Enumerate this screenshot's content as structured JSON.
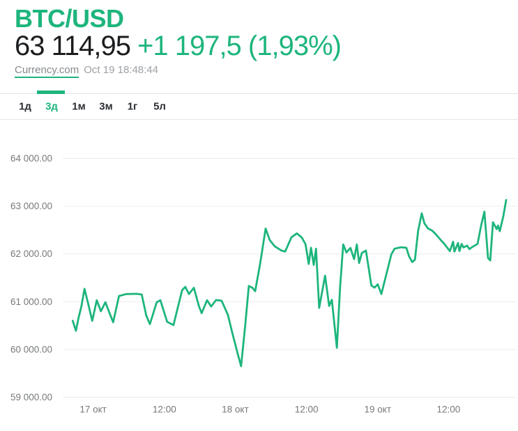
{
  "header": {
    "symbol": "BTC/USD",
    "price": "63 114,95",
    "change": "+1 197,5 (1,93%)",
    "source_link": "Currency.com",
    "timestamp": "Oct 19 18:48:44"
  },
  "colors": {
    "accent": "#1db57c",
    "price_text": "#1b1d1f",
    "axis_text": "#75787b",
    "gridline": "#ececec"
  },
  "tabs": {
    "items": [
      {
        "label": "1д",
        "active": false
      },
      {
        "label": "3д",
        "active": true
      },
      {
        "label": "1м",
        "active": false
      },
      {
        "label": "3м",
        "active": false
      },
      {
        "label": "1г",
        "active": false
      },
      {
        "label": "5л",
        "active": false
      }
    ]
  },
  "chart_data": {
    "type": "line",
    "title": "BTC/USD price, 3-day range",
    "xlabel": "",
    "ylabel": "",
    "legend": "none",
    "grid": "horizontal",
    "line_color": "#1db57c",
    "ylim": [
      58800,
      64600
    ],
    "y_ticks": [
      {
        "value": 64000,
        "label": "64 000.00"
      },
      {
        "value": 63000,
        "label": "63 000.00"
      },
      {
        "value": 62000,
        "label": "62 000.00"
      },
      {
        "value": 61000,
        "label": "61 000.00"
      },
      {
        "value": 60000,
        "label": "60 000.00"
      },
      {
        "value": 59000,
        "label": "59 000.00"
      }
    ],
    "x_ticks": [
      {
        "label": "17 окт",
        "pos": 6.7
      },
      {
        "label": "12:00",
        "pos": 22.4
      },
      {
        "label": "18 окт",
        "pos": 38.0
      },
      {
        "label": "12:00",
        "pos": 53.7
      },
      {
        "label": "19 окт",
        "pos": 69.4
      },
      {
        "label": "12:00",
        "pos": 85.0
      }
    ],
    "points": [
      [
        2.2,
        60600
      ],
      [
        2.9,
        60390
      ],
      [
        3.5,
        60670
      ],
      [
        4.1,
        60900
      ],
      [
        4.8,
        61270
      ],
      [
        5.7,
        60920
      ],
      [
        6.5,
        60600
      ],
      [
        7.5,
        61030
      ],
      [
        8.4,
        60800
      ],
      [
        9.4,
        60990
      ],
      [
        10.4,
        60740
      ],
      [
        11.1,
        60570
      ],
      [
        12.4,
        61120
      ],
      [
        14.0,
        61160
      ],
      [
        16.3,
        61165
      ],
      [
        17.4,
        61150
      ],
      [
        18.4,
        60710
      ],
      [
        19.2,
        60530
      ],
      [
        20.7,
        60990
      ],
      [
        21.5,
        61030
      ],
      [
        23.0,
        60580
      ],
      [
        24.4,
        60510
      ],
      [
        26.3,
        61240
      ],
      [
        27.0,
        61310
      ],
      [
        27.8,
        61160
      ],
      [
        28.9,
        61290
      ],
      [
        30.0,
        60910
      ],
      [
        30.6,
        60760
      ],
      [
        31.8,
        61030
      ],
      [
        32.7,
        60900
      ],
      [
        33.8,
        61035
      ],
      [
        35.0,
        61020
      ],
      [
        36.4,
        60720
      ],
      [
        37.3,
        60370
      ],
      [
        38.6,
        59890
      ],
      [
        39.3,
        59650
      ],
      [
        40.2,
        60500
      ],
      [
        41.0,
        61330
      ],
      [
        41.8,
        61290
      ],
      [
        42.4,
        61220
      ],
      [
        43.5,
        61800
      ],
      [
        44.7,
        62530
      ],
      [
        45.6,
        62290
      ],
      [
        46.7,
        62160
      ],
      [
        48.2,
        62070
      ],
      [
        49.0,
        62050
      ],
      [
        50.4,
        62350
      ],
      [
        51.6,
        62430
      ],
      [
        52.7,
        62340
      ],
      [
        53.5,
        62200
      ],
      [
        54.2,
        61790
      ],
      [
        54.7,
        62130
      ],
      [
        55.3,
        61770
      ],
      [
        55.8,
        62110
      ],
      [
        56.5,
        60870
      ],
      [
        57.8,
        61545
      ],
      [
        58.7,
        60910
      ],
      [
        59.3,
        61040
      ],
      [
        60.4,
        60035
      ],
      [
        61.1,
        61300
      ],
      [
        61.8,
        62200
      ],
      [
        62.5,
        62030
      ],
      [
        63.4,
        62125
      ],
      [
        64.2,
        61890
      ],
      [
        64.8,
        62200
      ],
      [
        65.3,
        61810
      ],
      [
        65.9,
        62020
      ],
      [
        66.8,
        62070
      ],
      [
        68.0,
        61340
      ],
      [
        68.7,
        61295
      ],
      [
        69.4,
        61365
      ],
      [
        70.2,
        61160
      ],
      [
        71.1,
        61500
      ],
      [
        72.4,
        61990
      ],
      [
        73.1,
        62110
      ],
      [
        74.5,
        62140
      ],
      [
        75.7,
        62130
      ],
      [
        76.3,
        61950
      ],
      [
        77.0,
        61830
      ],
      [
        77.6,
        61880
      ],
      [
        78.3,
        62480
      ],
      [
        79.1,
        62850
      ],
      [
        79.7,
        62640
      ],
      [
        80.5,
        62530
      ],
      [
        81.4,
        62490
      ],
      [
        82.5,
        62380
      ],
      [
        83.4,
        62280
      ],
      [
        84.0,
        62220
      ],
      [
        85.3,
        62060
      ],
      [
        86.0,
        62255
      ],
      [
        86.3,
        62050
      ],
      [
        87.1,
        62230
      ],
      [
        87.4,
        62060
      ],
      [
        87.9,
        62210
      ],
      [
        88.3,
        62135
      ],
      [
        89.1,
        62175
      ],
      [
        89.6,
        62100
      ],
      [
        90.3,
        62150
      ],
      [
        91.4,
        62210
      ],
      [
        92.2,
        62600
      ],
      [
        92.9,
        62885
      ],
      [
        93.7,
        61915
      ],
      [
        94.2,
        61865
      ],
      [
        94.8,
        62665
      ],
      [
        95.6,
        62520
      ],
      [
        95.9,
        62595
      ],
      [
        96.3,
        62475
      ],
      [
        97.1,
        62800
      ],
      [
        97.7,
        63130
      ]
    ]
  }
}
